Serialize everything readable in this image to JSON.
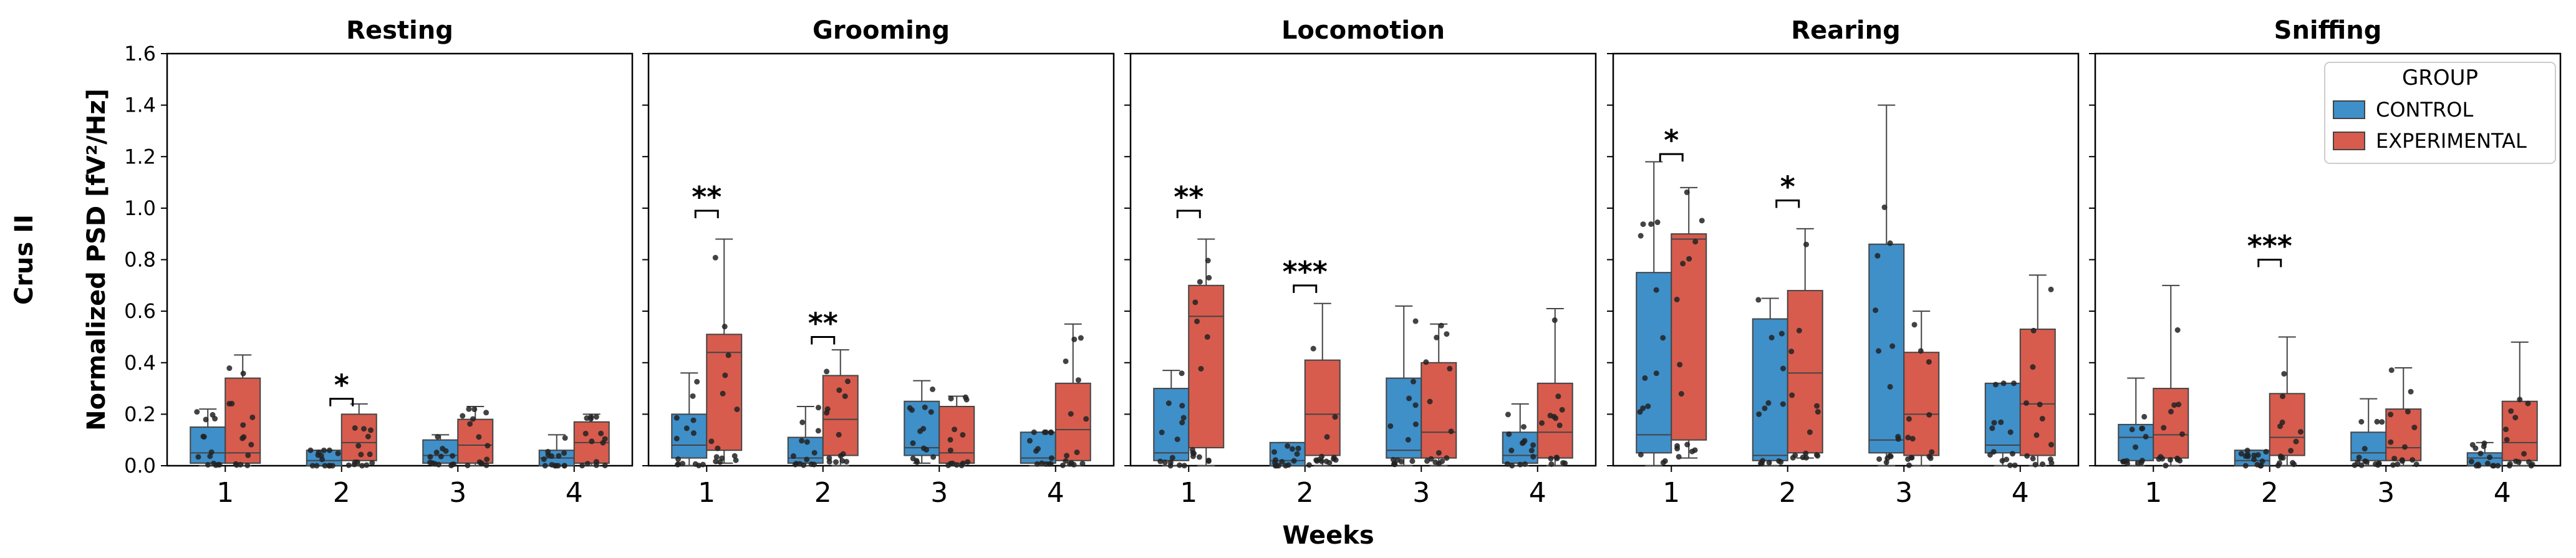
{
  "chart_data": {
    "type": "boxplot",
    "row_label": "Crus II",
    "ylabel": "Normalized PSD [fV²/Hz]",
    "xlabel": "Weeks",
    "ylim": [
      0,
      1.6
    ],
    "yticks": [
      "0.0",
      "0.2",
      "0.4",
      "0.6",
      "0.8",
      "1.0",
      "1.2",
      "1.4",
      "1.6"
    ],
    "categories": [
      "1",
      "2",
      "3",
      "4"
    ],
    "legend": {
      "title": "GROUP",
      "entries": [
        {
          "name": "CONTROL",
          "color": "#3f8fc9"
        },
        {
          "name": "EXPERIMENTAL",
          "color": "#d75c4e"
        }
      ]
    },
    "panels": [
      {
        "title": "Resting",
        "control": [
          {
            "q1": 0.01,
            "median": 0.05,
            "q3": 0.15,
            "whislo": 0.0,
            "whishi": 0.22
          },
          {
            "q1": 0.0,
            "median": 0.02,
            "q3": 0.06,
            "whislo": 0.0,
            "whishi": 0.06
          },
          {
            "q1": 0.01,
            "median": 0.04,
            "q3": 0.1,
            "whislo": 0.0,
            "whishi": 0.12
          },
          {
            "q1": 0.0,
            "median": 0.03,
            "q3": 0.06,
            "whislo": 0.0,
            "whishi": 0.12
          }
        ],
        "experimental": [
          {
            "q1": 0.01,
            "median": 0.05,
            "q3": 0.34,
            "whislo": 0.0,
            "whishi": 0.43
          },
          {
            "q1": 0.02,
            "median": 0.09,
            "q3": 0.2,
            "whislo": 0.0,
            "whishi": 0.24
          },
          {
            "q1": 0.01,
            "median": 0.08,
            "q3": 0.18,
            "whislo": 0.0,
            "whishi": 0.23
          },
          {
            "q1": 0.01,
            "median": 0.09,
            "q3": 0.17,
            "whislo": 0.0,
            "whishi": 0.2
          }
        ],
        "significance": [
          {
            "week": "2",
            "label": "*",
            "y": 0.26
          }
        ]
      },
      {
        "title": "Grooming",
        "control": [
          {
            "q1": 0.03,
            "median": 0.08,
            "q3": 0.2,
            "whislo": 0.0,
            "whishi": 0.36
          },
          {
            "q1": 0.01,
            "median": 0.03,
            "q3": 0.11,
            "whislo": 0.0,
            "whishi": 0.23
          },
          {
            "q1": 0.04,
            "median": 0.07,
            "q3": 0.25,
            "whislo": 0.01,
            "whishi": 0.33
          },
          {
            "q1": 0.01,
            "median": 0.03,
            "q3": 0.13,
            "whislo": 0.0,
            "whishi": 0.13
          }
        ],
        "experimental": [
          {
            "q1": 0.06,
            "median": 0.44,
            "q3": 0.51,
            "whislo": 0.01,
            "whishi": 0.88
          },
          {
            "q1": 0.04,
            "median": 0.18,
            "q3": 0.35,
            "whislo": 0.0,
            "whishi": 0.45
          },
          {
            "q1": 0.01,
            "median": 0.05,
            "q3": 0.23,
            "whislo": 0.0,
            "whishi": 0.27
          },
          {
            "q1": 0.02,
            "median": 0.14,
            "q3": 0.32,
            "whislo": 0.0,
            "whishi": 0.55
          }
        ],
        "significance": [
          {
            "week": "1",
            "label": "**",
            "y": 0.99
          },
          {
            "week": "2",
            "label": "**",
            "y": 0.5
          }
        ]
      },
      {
        "title": "Locomotion",
        "control": [
          {
            "q1": 0.02,
            "median": 0.05,
            "q3": 0.3,
            "whislo": 0.0,
            "whishi": 0.37
          },
          {
            "q1": 0.0,
            "median": 0.02,
            "q3": 0.09,
            "whislo": 0.0,
            "whishi": 0.09
          },
          {
            "q1": 0.03,
            "median": 0.06,
            "q3": 0.34,
            "whislo": 0.0,
            "whishi": 0.62
          },
          {
            "q1": 0.01,
            "median": 0.04,
            "q3": 0.13,
            "whislo": 0.0,
            "whishi": 0.24
          }
        ],
        "experimental": [
          {
            "q1": 0.07,
            "median": 0.58,
            "q3": 0.7,
            "whislo": 0.0,
            "whishi": 0.88
          },
          {
            "q1": 0.04,
            "median": 0.2,
            "q3": 0.41,
            "whislo": 0.0,
            "whishi": 0.63
          },
          {
            "q1": 0.03,
            "median": 0.13,
            "q3": 0.4,
            "whislo": 0.0,
            "whishi": 0.55
          },
          {
            "q1": 0.03,
            "median": 0.13,
            "q3": 0.32,
            "whislo": 0.0,
            "whishi": 0.61
          }
        ],
        "significance": [
          {
            "week": "1",
            "label": "**",
            "y": 0.99
          },
          {
            "week": "2",
            "label": "***",
            "y": 0.7
          }
        ]
      },
      {
        "title": "Rearing",
        "control": [
          {
            "q1": 0.05,
            "median": 0.12,
            "q3": 0.75,
            "whislo": 0.0,
            "whishi": 1.18
          },
          {
            "q1": 0.02,
            "median": 0.04,
            "q3": 0.57,
            "whislo": 0.0,
            "whishi": 0.65
          },
          {
            "q1": 0.05,
            "median": 0.1,
            "q3": 0.86,
            "whislo": 0.0,
            "whishi": 1.4
          },
          {
            "q1": 0.05,
            "median": 0.08,
            "q3": 0.32,
            "whislo": 0.0,
            "whishi": 0.32
          }
        ],
        "experimental": [
          {
            "q1": 0.1,
            "median": 0.88,
            "q3": 0.9,
            "whislo": 0.03,
            "whishi": 1.08
          },
          {
            "q1": 0.05,
            "median": 0.36,
            "q3": 0.68,
            "whislo": 0.03,
            "whishi": 0.92
          },
          {
            "q1": 0.04,
            "median": 0.2,
            "q3": 0.44,
            "whislo": 0.0,
            "whishi": 0.6
          },
          {
            "q1": 0.04,
            "median": 0.24,
            "q3": 0.53,
            "whislo": 0.0,
            "whishi": 0.74
          }
        ],
        "significance": [
          {
            "week": "1",
            "label": "*",
            "y": 1.21
          },
          {
            "week": "2",
            "label": "*",
            "y": 1.03
          }
        ]
      },
      {
        "title": "Sniffing",
        "control": [
          {
            "q1": 0.02,
            "median": 0.11,
            "q3": 0.16,
            "whislo": 0.0,
            "whishi": 0.34
          },
          {
            "q1": 0.0,
            "median": 0.02,
            "q3": 0.06,
            "whislo": 0.0,
            "whishi": 0.06
          },
          {
            "q1": 0.02,
            "median": 0.05,
            "q3": 0.13,
            "whislo": 0.0,
            "whishi": 0.26
          },
          {
            "q1": 0.0,
            "median": 0.03,
            "q3": 0.05,
            "whislo": 0.0,
            "whishi": 0.09
          }
        ],
        "experimental": [
          {
            "q1": 0.03,
            "median": 0.12,
            "q3": 0.3,
            "whislo": 0.0,
            "whishi": 0.7
          },
          {
            "q1": 0.04,
            "median": 0.11,
            "q3": 0.28,
            "whislo": 0.0,
            "whishi": 0.5
          },
          {
            "q1": 0.02,
            "median": 0.07,
            "q3": 0.22,
            "whislo": 0.0,
            "whishi": 0.38
          },
          {
            "q1": 0.02,
            "median": 0.09,
            "q3": 0.25,
            "whislo": 0.0,
            "whishi": 0.48
          }
        ],
        "significance": [
          {
            "week": "2",
            "label": "***",
            "y": 0.8
          }
        ]
      }
    ]
  }
}
